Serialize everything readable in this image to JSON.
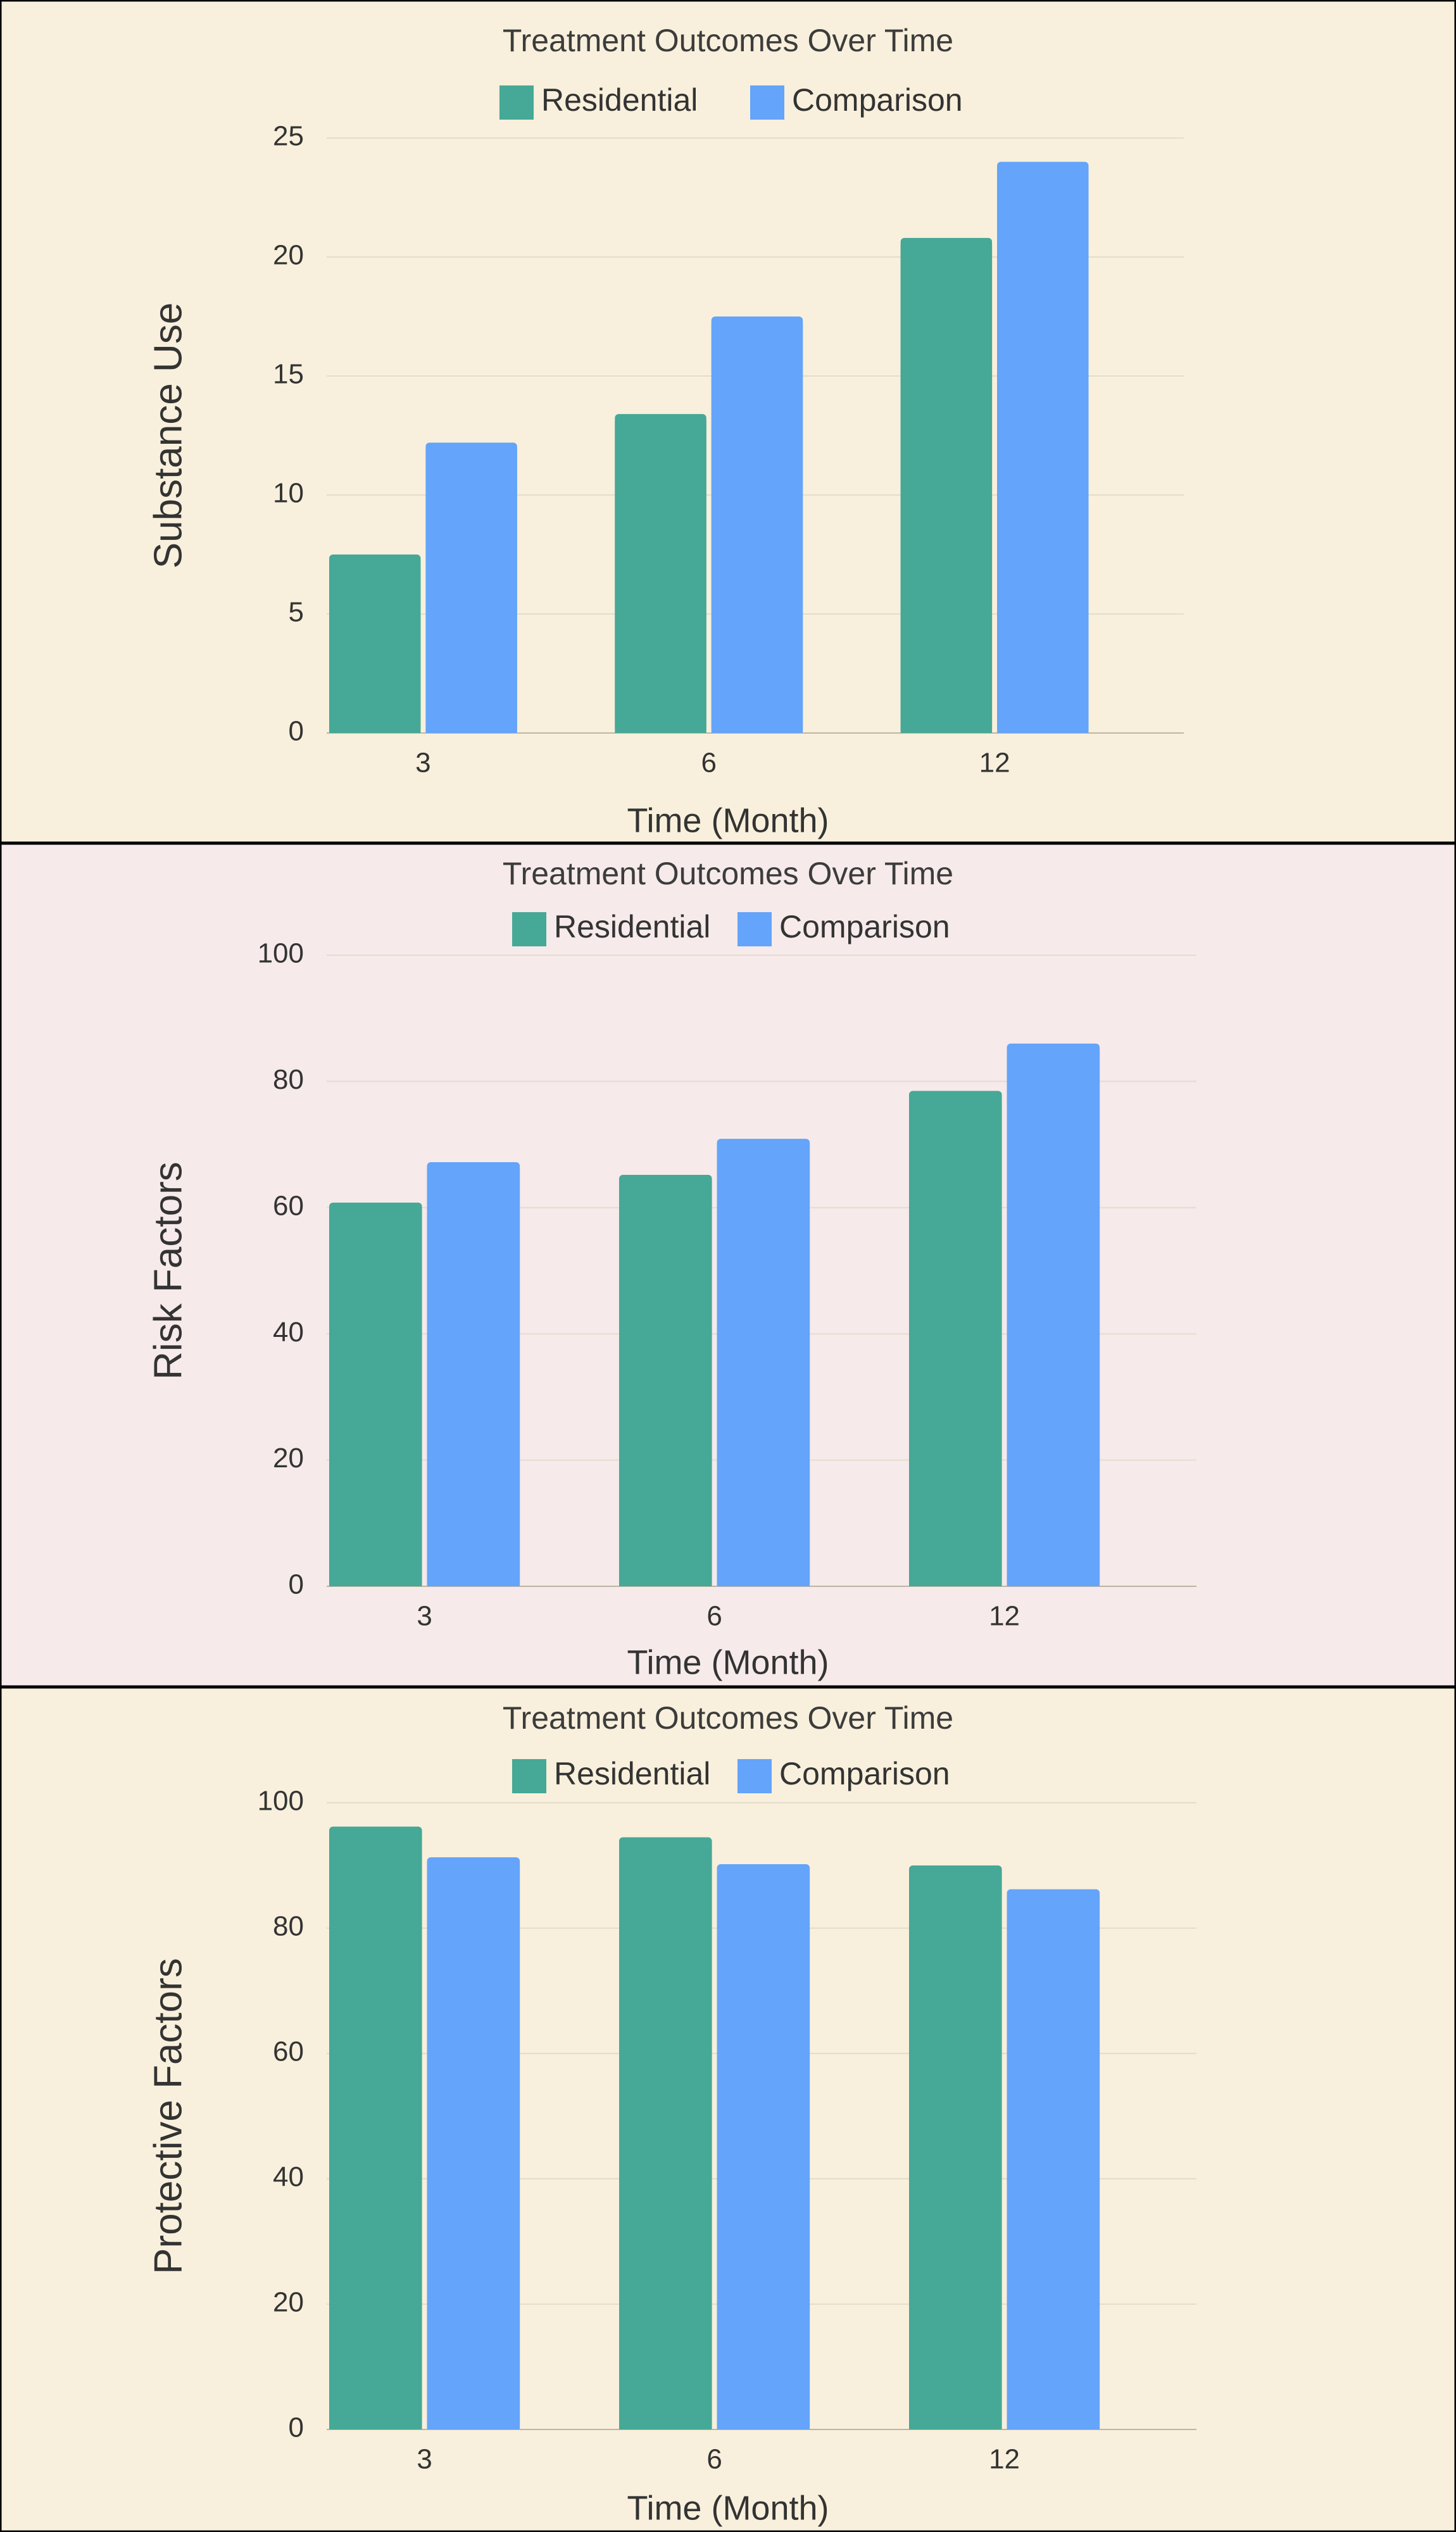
{
  "colors": {
    "residential": "#46a896",
    "comparison": "#64a4fa",
    "grid": "#e4ddcc",
    "panel_bg_1": "#f8f0dc",
    "panel_bg_2": "#f6eaea",
    "panel_bg_3": "#f8f0dc"
  },
  "chart_data": [
    {
      "type": "bar",
      "title": "Treatment Outcomes Over Time",
      "xlabel": "Time (Month)",
      "ylabel": "Substance Use",
      "categories": [
        "3",
        "6",
        "12"
      ],
      "series": [
        {
          "name": "Residential",
          "values": [
            7.5,
            13.4,
            20.8
          ]
        },
        {
          "name": "Comparison",
          "values": [
            12.2,
            17.5,
            24.0
          ]
        }
      ],
      "ylim": [
        0,
        25
      ],
      "yticks": [
        "0",
        "5",
        "10",
        "15",
        "20",
        "25"
      ],
      "grid": true,
      "legend": "top-center"
    },
    {
      "type": "bar",
      "title": "Treatment Outcomes Over Time",
      "xlabel": "Time (Month)",
      "ylabel": "Risk Factors",
      "categories": [
        "3",
        "6",
        "12"
      ],
      "series": [
        {
          "name": "Residential",
          "values": [
            60.8,
            65.2,
            78.5
          ]
        },
        {
          "name": "Comparison",
          "values": [
            67.2,
            70.9,
            86.0
          ]
        }
      ],
      "ylim": [
        0,
        100
      ],
      "yticks": [
        "0",
        "20",
        "40",
        "60",
        "80",
        "100"
      ],
      "grid": true,
      "legend": "top-center"
    },
    {
      "type": "bar",
      "title": "Treatment Outcomes Over Time",
      "xlabel": "Time (Month)",
      "ylabel": "Protective Factors",
      "categories": [
        "3",
        "6",
        "12"
      ],
      "series": [
        {
          "name": "Residential",
          "values": [
            96.2,
            94.5,
            90.0
          ]
        },
        {
          "name": "Comparison",
          "values": [
            91.3,
            90.2,
            86.2
          ]
        }
      ],
      "ylim": [
        0,
        100
      ],
      "yticks": [
        "0",
        "20",
        "40",
        "60",
        "80",
        "100"
      ],
      "grid": true,
      "legend": "top-center"
    }
  ]
}
